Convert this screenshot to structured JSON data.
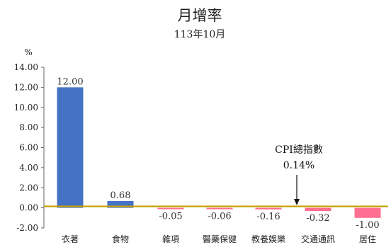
{
  "chart_data": {
    "type": "bar",
    "title": "月增率",
    "subtitle": "113年10月",
    "ylabel": "%",
    "ylim": [
      -2,
      14
    ],
    "yticks": [
      "-2.00",
      "0.00",
      "2.00",
      "4.00",
      "6.00",
      "8.00",
      "10.00",
      "12.00",
      "14.00"
    ],
    "categories": [
      "衣著",
      "食物",
      "雜項",
      "醫藥保健",
      "教養娛樂",
      "交通通訊",
      "居住"
    ],
    "values": [
      12.0,
      0.68,
      -0.05,
      -0.06,
      -0.16,
      -0.32,
      -1.0
    ],
    "data_labels": [
      "12.00",
      "0.68",
      "-0.05",
      "-0.06",
      "-0.16",
      "-0.32",
      "-1.00"
    ],
    "positive_color": "#4472c4",
    "negative_color": "#ff6f91",
    "reference_line": {
      "value": 0.14,
      "color": "#c8a000",
      "label": "CPI總指數",
      "value_label": "0.14%"
    },
    "grid": false,
    "legend": "none"
  }
}
